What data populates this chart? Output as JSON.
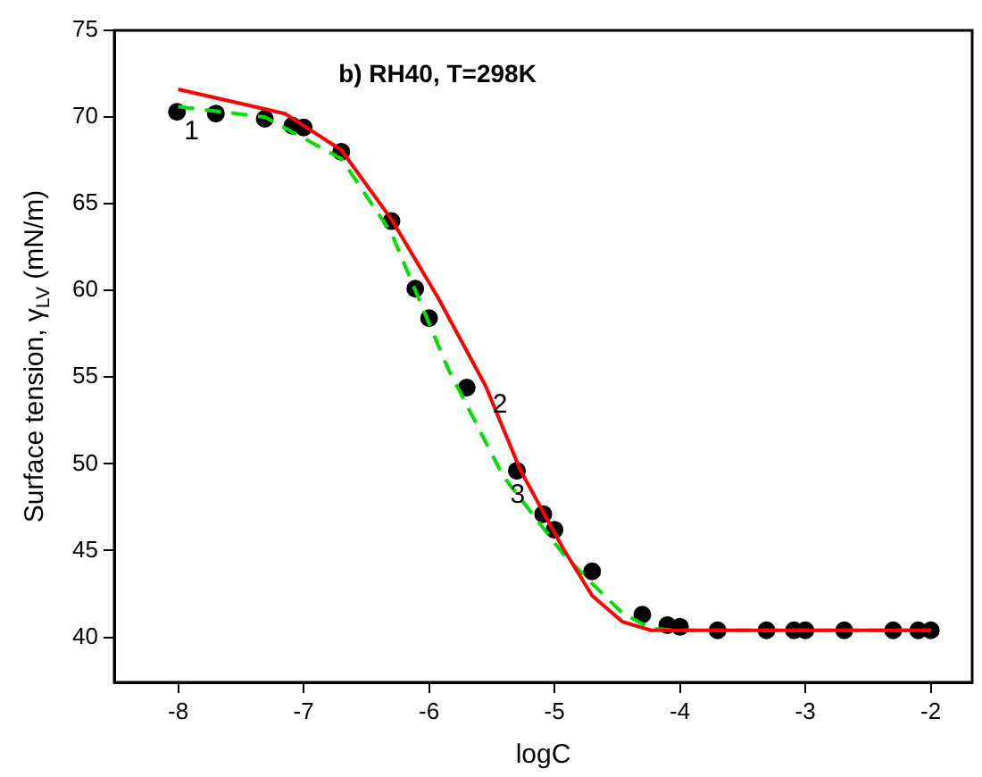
{
  "chart_data": {
    "type": "scatter",
    "title": "b) RH40, T=298K",
    "xlabel": "logC",
    "ylabel": "Surface tension, γ$_{LV}$ (mN/m)",
    "xlim": [
      -8.51,
      -1.67
    ],
    "xticks": [
      -8,
      -7,
      -6,
      -5,
      -4,
      -3,
      -2
    ],
    "ylim": [
      37.4,
      75
    ],
    "yticks": [
      40,
      45,
      50,
      55,
      60,
      65,
      70,
      75
    ],
    "grid": false,
    "legend": false,
    "series": [
      {
        "color": "#000000",
        "marker": "circle",
        "x": [
          -8.01,
          -7.7,
          -7.31,
          -7.09,
          -7.0,
          -6.7,
          -6.3,
          -6.11,
          -6.0,
          -5.7,
          -5.3,
          -5.09,
          -5.0,
          -4.7,
          -4.3,
          -4.1,
          -4.0,
          -3.7,
          -3.31,
          -3.09,
          -3.0,
          -2.69,
          -2.3,
          -2.1,
          -2.0
        ],
        "values": [
          70.3,
          70.2,
          69.9,
          69.5,
          69.4,
          68.0,
          64.0,
          60.1,
          58.4,
          54.4,
          49.6,
          47.1,
          46.2,
          43.8,
          41.3,
          40.7,
          40.6,
          40.4,
          40.4,
          40.4,
          40.4,
          40.4,
          40.4,
          40.4,
          40.4
        ]
      },
      {
        "type": "line",
        "color": "#ff0000",
        "marker": "none",
        "line_style": "solid",
        "x": [
          -8,
          -7.15,
          -6.7,
          -6.3,
          -5.93,
          -5.55,
          -5.27,
          -4.93,
          -4.7,
          -4.46,
          -4.23,
          -4.0,
          -3.0,
          -2.0
        ],
        "values": [
          71.6,
          70.2,
          68.1,
          64.1,
          59.6,
          54.5,
          49.6,
          45.1,
          42.4,
          40.9,
          40.4,
          40.4,
          40.4,
          40.4
        ]
      },
      {
        "type": "line",
        "color": "#00e000",
        "marker": "none",
        "line_style": "dashed",
        "x": [
          -8,
          -7.31,
          -6.7,
          -6.3,
          -5.85,
          -5.41,
          -4.93,
          -4.7,
          -4.46,
          -4.23,
          -4.0,
          -3.0,
          -2.0
        ],
        "values": [
          70.6,
          70.0,
          67.6,
          63.3,
          55.5,
          49.3,
          44.8,
          43.1,
          41.4,
          40.5,
          40.4,
          40.4,
          40.4
        ]
      }
    ],
    "annotations": [
      {
        "text": "1",
        "x": -8.01,
        "y": 70.3
      },
      {
        "text": "2",
        "x": -5.55,
        "y": 54.5
      },
      {
        "text": "3",
        "x": -5.41,
        "y": 49.3
      }
    ]
  }
}
